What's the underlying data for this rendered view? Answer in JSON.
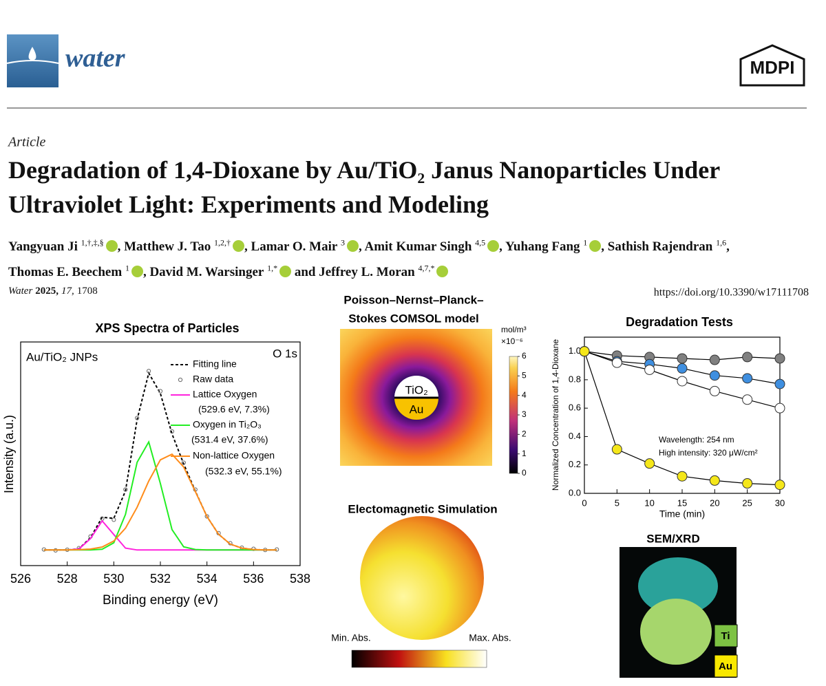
{
  "header": {
    "journal_logo": "water",
    "publisher_logo": "MDPI"
  },
  "article": {
    "type": "Article",
    "title": "Degradation of 1,4-Dioxane by Au/TiO₂ Janus Nanoparticles Under Ultraviolet Light: Experiments and Modeling",
    "authors": [
      {
        "name": "Yangyuan Ji",
        "affiliations": "1,†,‡,§",
        "orcid": true,
        "separator": ","
      },
      {
        "name": "Matthew J. Tao",
        "affiliations": "1,2,†",
        "orcid": true,
        "separator": ","
      },
      {
        "name": "Lamar O. Mair",
        "affiliations": "3",
        "orcid": true,
        "separator": ","
      },
      {
        "name": "Amit Kumar Singh",
        "affiliations": "4,5",
        "orcid": true,
        "separator": ","
      },
      {
        "name": "Yuhang Fang",
        "affiliations": "1",
        "orcid": true,
        "separator": ","
      },
      {
        "name": "Sathish Rajendran",
        "affiliations": "1,6",
        "orcid": false,
        "separator": ","
      },
      {
        "name": "Thomas E. Beechem",
        "affiliations": "1",
        "orcid": true,
        "separator": ","
      },
      {
        "name": "David M. Warsinger",
        "affiliations": "1,*",
        "orcid": true,
        "separator": "and"
      },
      {
        "name": "Jeffrey L. Moran",
        "affiliations": "4,7,*",
        "orcid": true
      }
    ],
    "citation": {
      "journal": "Water",
      "year": "2025,",
      "volume": "17,",
      "article": "1708"
    },
    "doi": "https://doi.org/10.3390/w17111708"
  },
  "chart_data": [
    {
      "type": "line",
      "title": "XPS Spectra of Particles",
      "x_label": "Binding energy (eV)",
      "y_label": "Intensity (a.u.)",
      "xlim": [
        526,
        538
      ],
      "xticks": [
        526,
        528,
        530,
        532,
        534,
        536,
        538
      ],
      "ylim": [
        0,
        1
      ],
      "annotations": [
        "Au/TiO₂ JNPs",
        "O 1s",
        "(529.6 eV, 7.3%)",
        "(531.4 eV, 37.6%)",
        "(532.3 eV, 55.1%)"
      ],
      "x": [
        527,
        527.5,
        528,
        528.5,
        529,
        529.5,
        530,
        530.5,
        531,
        531.5,
        532,
        532.5,
        533,
        533.5,
        534,
        534.5,
        535,
        535.5,
        536,
        536.5,
        537
      ],
      "series": [
        {
          "name": "Fitting line",
          "color": "#000000",
          "line_style": "dashed",
          "marker": false,
          "values": [
            0.07,
            0.07,
            0.07,
            0.075,
            0.125,
            0.216,
            0.211,
            0.334,
            0.653,
            0.861,
            0.77,
            0.589,
            0.455,
            0.333,
            0.219,
            0.14,
            0.096,
            0.078,
            0.072,
            0.07,
            0.07
          ]
        },
        {
          "name": "Raw data",
          "color": "#666666",
          "line_style": "none",
          "marker": true,
          "values": [
            0.072,
            0.068,
            0.071,
            0.078,
            0.13,
            0.21,
            0.205,
            0.34,
            0.66,
            0.87,
            0.78,
            0.6,
            0.46,
            0.34,
            0.22,
            0.145,
            0.1,
            0.08,
            0.075,
            0.07,
            0.072
          ]
        },
        {
          "name": "Lattice Oxygen",
          "color": "#ff22dd",
          "line_style": "solid",
          "marker": false,
          "values": [
            0.07,
            0.07,
            0.07,
            0.074,
            0.121,
            0.2,
            0.139,
            0.078,
            0.07,
            0.07,
            0.07,
            0.07,
            0.07,
            0.07,
            0.07,
            0.07,
            0.07,
            0.07,
            0.07,
            0.07,
            0.07
          ]
        },
        {
          "name": "Oxygen in Ti₂O₃",
          "color": "#22ee22",
          "line_style": "solid",
          "marker": false,
          "values": [
            0.07,
            0.07,
            0.07,
            0.07,
            0.07,
            0.073,
            0.102,
            0.229,
            0.462,
            0.553,
            0.367,
            0.161,
            0.084,
            0.072,
            0.07,
            0.07,
            0.07,
            0.07,
            0.07,
            0.07,
            0.07
          ]
        },
        {
          "name": "Non-lattice Oxygen",
          "color": "#ff8c1a",
          "line_style": "solid",
          "marker": false,
          "values": [
            0.07,
            0.07,
            0.07,
            0.071,
            0.074,
            0.083,
            0.11,
            0.167,
            0.261,
            0.378,
            0.473,
            0.498,
            0.441,
            0.331,
            0.219,
            0.14,
            0.096,
            0.078,
            0.072,
            0.07,
            0.07
          ]
        }
      ]
    },
    {
      "type": "line",
      "title": "Degradation Tests",
      "x_label": "Time (min)",
      "y_label": "Normalized Concentration of 1,4-Dioxane",
      "xlim": [
        0,
        30
      ],
      "xticks": [
        0,
        5,
        10,
        15,
        20,
        25,
        30
      ],
      "ylim": [
        0,
        1.1
      ],
      "yticks": [
        {
          "value": 0,
          "label": "0.0"
        },
        {
          "value": 0.2,
          "label": "0.2"
        },
        {
          "value": 0.4,
          "label": "0.4"
        },
        {
          "value": 0.6,
          "label": "0.6"
        },
        {
          "value": 0.8,
          "label": "0.8"
        },
        {
          "value": 1,
          "label": "1.0"
        }
      ],
      "annotations": [
        "Wavelength: 254 nm",
        "High intensity: 320 μW/cm²"
      ],
      "x": [
        0,
        5,
        10,
        15,
        20,
        25,
        30
      ],
      "series": [
        {
          "color": "#808080",
          "line_style": "solid",
          "marker": true,
          "values": [
            1,
            0.97,
            0.96,
            0.95,
            0.94,
            0.96,
            0.95
          ]
        },
        {
          "color": "#3f8fe0",
          "line_style": "solid",
          "marker": true,
          "values": [
            1,
            0.93,
            0.91,
            0.88,
            0.83,
            0.81,
            0.77
          ]
        },
        {
          "color": "#ffffff",
          "line_style": "solid",
          "marker": true,
          "values": [
            1,
            0.92,
            0.87,
            0.79,
            0.72,
            0.66,
            0.6
          ]
        },
        {
          "color": "#f5e71a",
          "line_style": "solid",
          "marker": true,
          "values": [
            1,
            0.31,
            0.21,
            0.12,
            0.09,
            0.07,
            0.06
          ]
        }
      ]
    }
  ],
  "figures": {
    "comsol": {
      "title_lines": [
        "Poisson–Nernst–Planck–",
        "Stokes COMSOL model"
      ],
      "top_label": "TiO₂",
      "bottom_label": "Au",
      "unit": "mol/m³",
      "scale": "×10⁻⁶",
      "colorbar_ticks": [
        0,
        1,
        2,
        3,
        4,
        5,
        6
      ]
    },
    "em": {
      "title": "Electomagnetic Simulation",
      "min_label": "Min. Abs.",
      "max_label": "Max. Abs."
    },
    "sem": {
      "title": "SEM/XRD",
      "labels": [
        "Ti",
        "Au"
      ]
    }
  }
}
